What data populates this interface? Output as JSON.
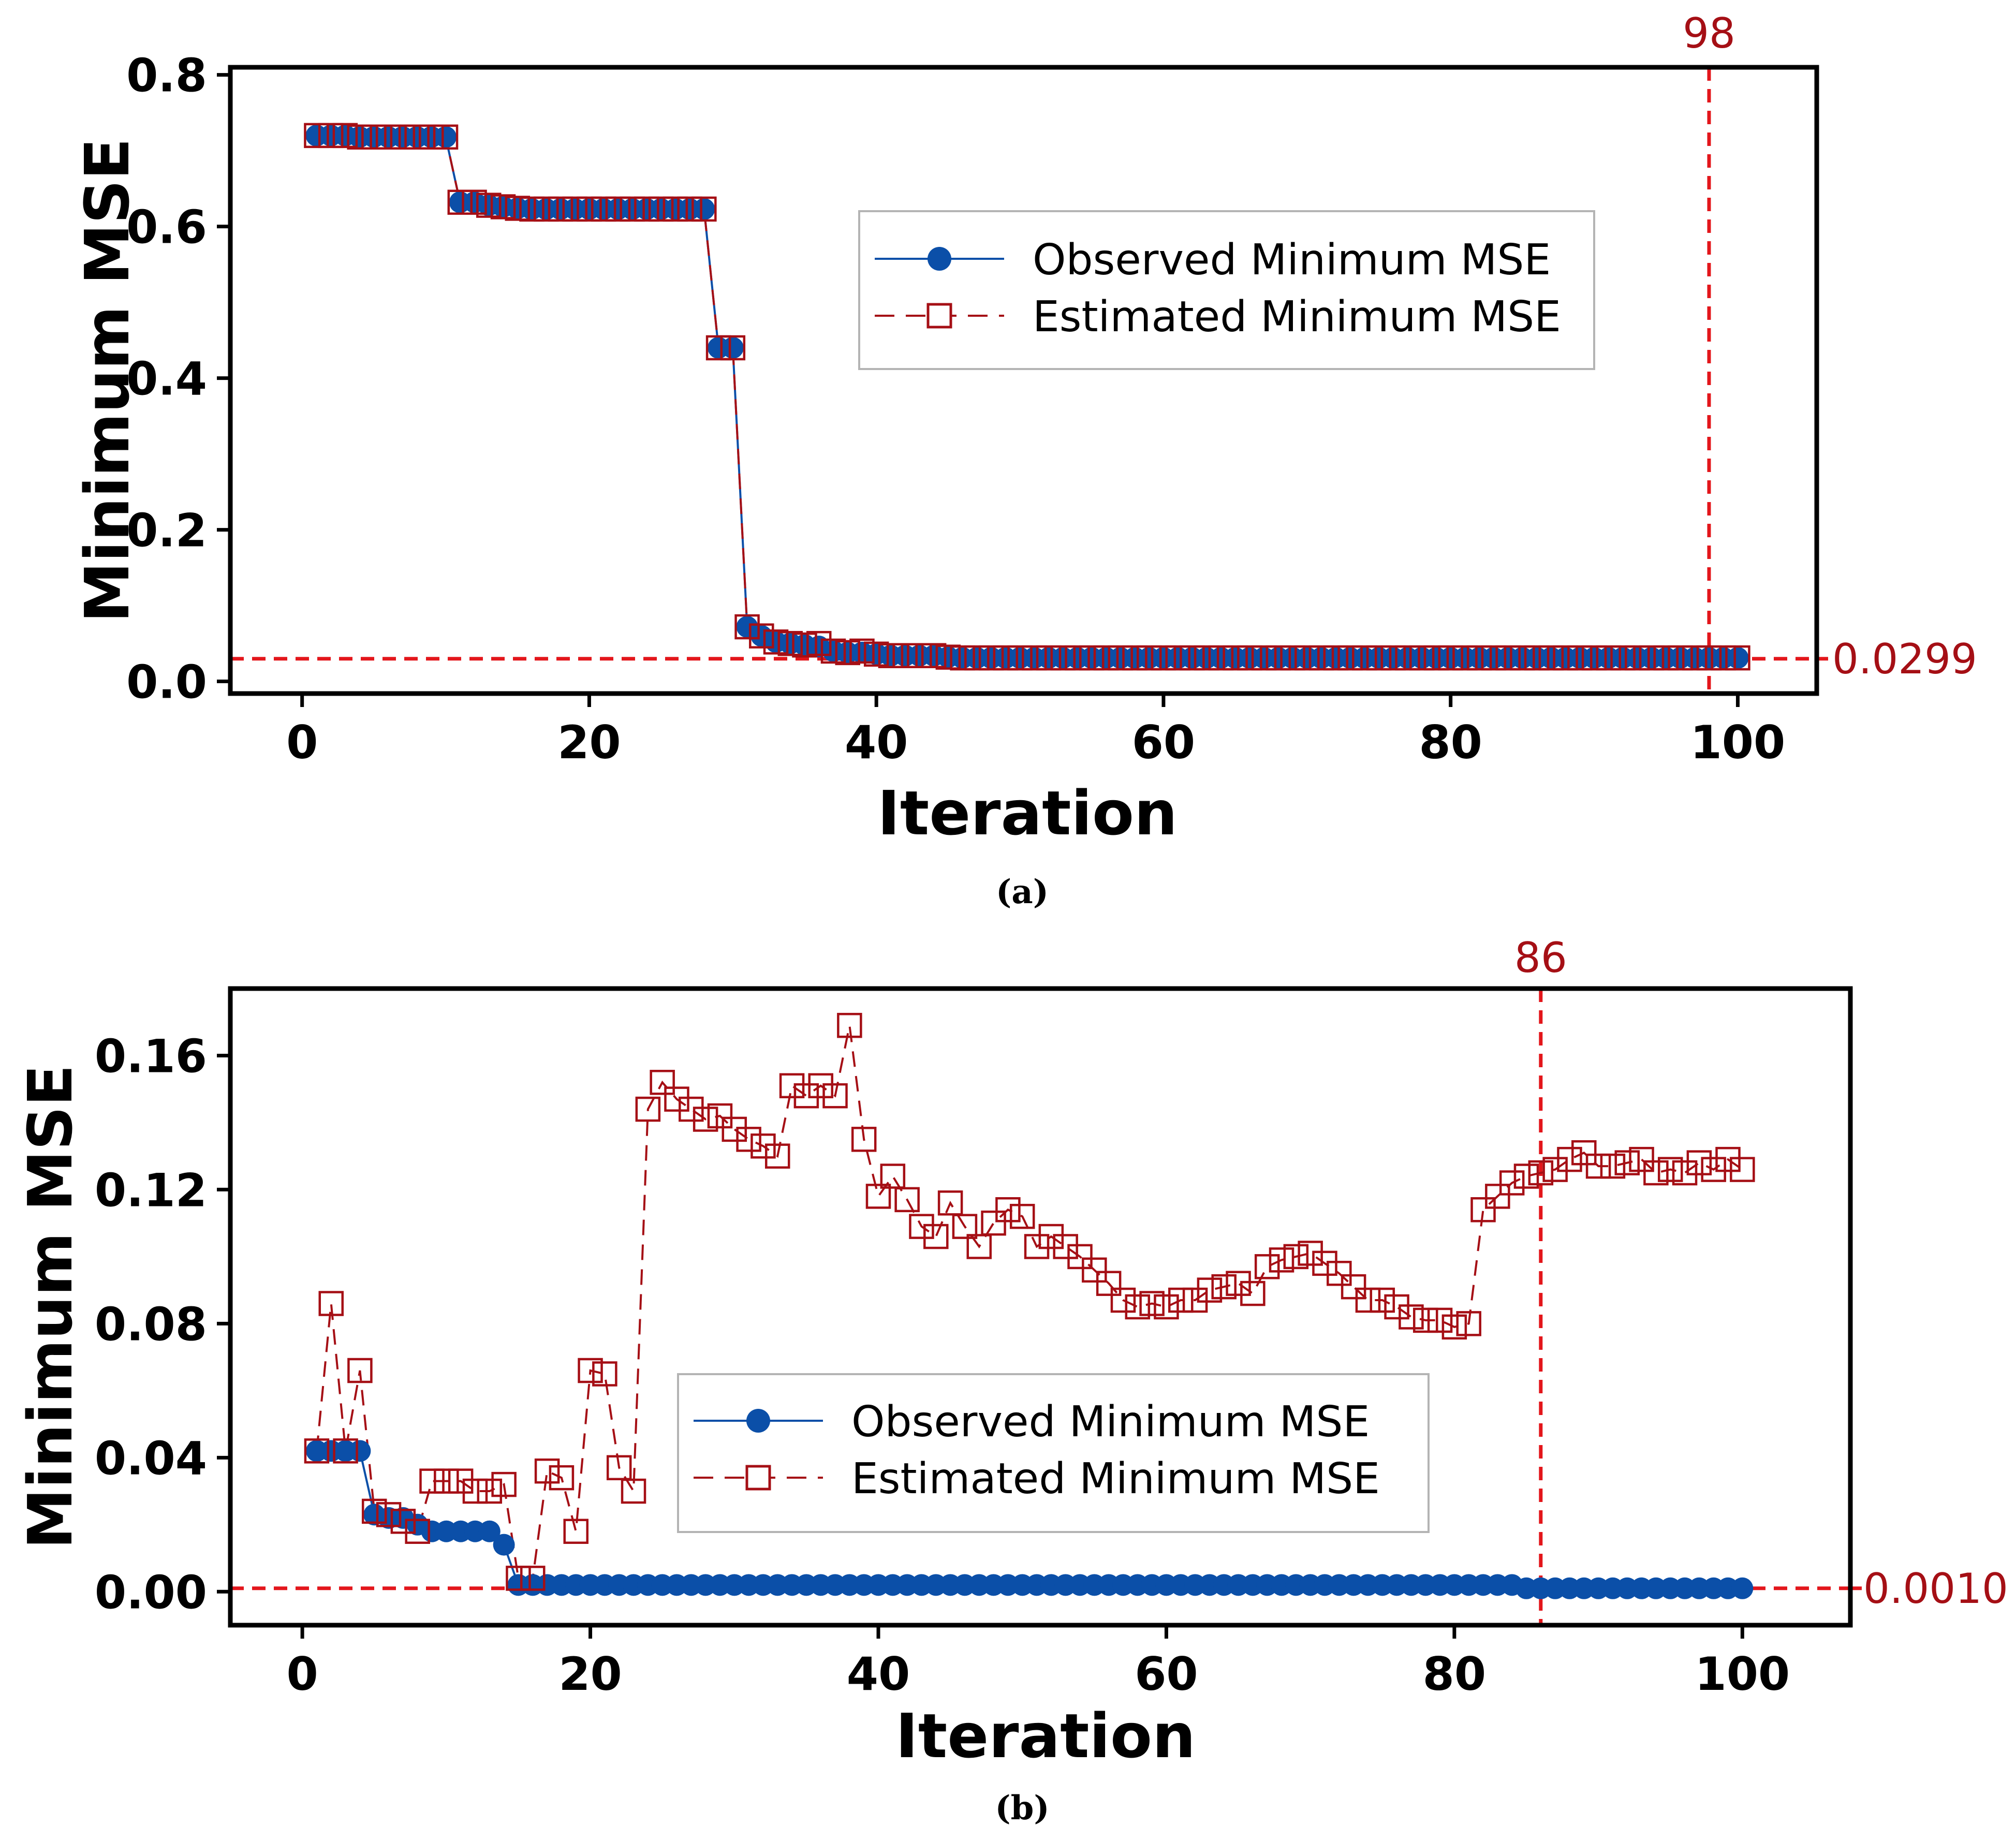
{
  "colors": {
    "observed": "#0b4fa8",
    "estimated": "#a50f15",
    "reference": "#e3161b",
    "axis": "#000000",
    "legend_border": "#b4b4b4"
  },
  "chart_data": [
    {
      "type": "line",
      "panel": "a",
      "caption": "(a)",
      "xlabel": "Iteration",
      "ylabel": "Minimum MSE",
      "xlim": [
        -5,
        105.5
      ],
      "ylim": [
        -0.016,
        0.81
      ],
      "xticks": [
        0,
        20,
        40,
        60,
        80,
        100
      ],
      "yticks": [
        0.0,
        0.2,
        0.4,
        0.6,
        0.8
      ],
      "ytick_decimals": 1,
      "grid": false,
      "legend_position": "upper-center-right",
      "legend": [
        "Observed Minimum MSE",
        "Estimated Minimum MSE"
      ],
      "vline": {
        "x": 98,
        "label": "98"
      },
      "hline": {
        "y": 0.0299,
        "label": "0.0299"
      },
      "series": [
        {
          "name": "Observed Minimum MSE",
          "marker": "filled-circle",
          "x": [
            1,
            2,
            3,
            4,
            5,
            6,
            7,
            8,
            9,
            10,
            11,
            12,
            13,
            14,
            15,
            16,
            17,
            18,
            19,
            20,
            21,
            22,
            23,
            24,
            25,
            26,
            27,
            28,
            29,
            30,
            31,
            32,
            33,
            34,
            35,
            36,
            37,
            38,
            39,
            40,
            41,
            42,
            43,
            44,
            45,
            46,
            47,
            48,
            49,
            50,
            51,
            52,
            53,
            54,
            55,
            56,
            57,
            58,
            59,
            60,
            61,
            62,
            63,
            64,
            65,
            66,
            67,
            68,
            69,
            70,
            71,
            72,
            73,
            74,
            75,
            76,
            77,
            78,
            79,
            80,
            81,
            82,
            83,
            84,
            85,
            86,
            87,
            88,
            89,
            90,
            91,
            92,
            93,
            94,
            95,
            96,
            97,
            98,
            99,
            100
          ],
          "values": [
            0.72,
            0.72,
            0.72,
            0.718,
            0.718,
            0.718,
            0.718,
            0.718,
            0.718,
            0.718,
            0.632,
            0.632,
            0.628,
            0.626,
            0.624,
            0.623,
            0.623,
            0.623,
            0.623,
            0.623,
            0.623,
            0.623,
            0.623,
            0.623,
            0.623,
            0.623,
            0.623,
            0.623,
            0.44,
            0.44,
            0.072,
            0.06,
            0.052,
            0.05,
            0.048,
            0.046,
            0.04,
            0.038,
            0.038,
            0.036,
            0.034,
            0.034,
            0.034,
            0.034,
            0.032,
            0.031,
            0.031,
            0.031,
            0.031,
            0.031,
            0.031,
            0.031,
            0.031,
            0.031,
            0.031,
            0.031,
            0.031,
            0.031,
            0.031,
            0.031,
            0.031,
            0.031,
            0.031,
            0.031,
            0.031,
            0.031,
            0.031,
            0.031,
            0.031,
            0.031,
            0.031,
            0.031,
            0.031,
            0.031,
            0.031,
            0.031,
            0.031,
            0.031,
            0.031,
            0.031,
            0.031,
            0.031,
            0.031,
            0.031,
            0.031,
            0.031,
            0.031,
            0.031,
            0.031,
            0.031,
            0.031,
            0.031,
            0.031,
            0.031,
            0.031,
            0.031,
            0.031,
            0.031,
            0.031,
            0.031
          ]
        },
        {
          "name": "Estimated Minimum MSE",
          "marker": "open-square",
          "x": [
            1,
            2,
            3,
            4,
            5,
            6,
            7,
            8,
            9,
            10,
            11,
            12,
            13,
            14,
            15,
            16,
            17,
            18,
            19,
            20,
            21,
            22,
            23,
            24,
            25,
            26,
            27,
            28,
            29,
            30,
            31,
            32,
            33,
            34,
            35,
            36,
            37,
            38,
            39,
            40,
            41,
            42,
            43,
            44,
            45,
            46,
            47,
            48,
            49,
            50,
            51,
            52,
            53,
            54,
            55,
            56,
            57,
            58,
            59,
            60,
            61,
            62,
            63,
            64,
            65,
            66,
            67,
            68,
            69,
            70,
            71,
            72,
            73,
            74,
            75,
            76,
            77,
            78,
            79,
            80,
            81,
            82,
            83,
            84,
            85,
            86,
            87,
            88,
            89,
            90,
            91,
            92,
            93,
            94,
            95,
            96,
            97,
            98,
            99,
            100
          ],
          "values": [
            0.72,
            0.72,
            0.72,
            0.718,
            0.718,
            0.718,
            0.718,
            0.718,
            0.718,
            0.718,
            0.632,
            0.632,
            0.628,
            0.626,
            0.624,
            0.623,
            0.623,
            0.623,
            0.623,
            0.623,
            0.623,
            0.623,
            0.623,
            0.623,
            0.623,
            0.623,
            0.623,
            0.623,
            0.44,
            0.44,
            0.072,
            0.06,
            0.052,
            0.05,
            0.048,
            0.05,
            0.04,
            0.038,
            0.04,
            0.036,
            0.034,
            0.034,
            0.034,
            0.034,
            0.032,
            0.031,
            0.031,
            0.031,
            0.031,
            0.031,
            0.031,
            0.031,
            0.031,
            0.031,
            0.031,
            0.031,
            0.031,
            0.031,
            0.031,
            0.031,
            0.031,
            0.031,
            0.031,
            0.031,
            0.031,
            0.031,
            0.031,
            0.031,
            0.031,
            0.031,
            0.031,
            0.031,
            0.031,
            0.031,
            0.031,
            0.031,
            0.031,
            0.031,
            0.031,
            0.031,
            0.031,
            0.031,
            0.031,
            0.031,
            0.031,
            0.031,
            0.031,
            0.031,
            0.031,
            0.031,
            0.031,
            0.031,
            0.031,
            0.031,
            0.031,
            0.031,
            0.031,
            0.031,
            0.031,
            0.031
          ]
        }
      ]
    },
    {
      "type": "line",
      "panel": "b",
      "caption": "(b)",
      "xlabel": "Iteration",
      "ylabel": "Minimum MSE",
      "xlim": [
        -5,
        107.5
      ],
      "ylim": [
        -0.01,
        0.18
      ],
      "xticks": [
        0,
        20,
        40,
        60,
        80,
        100
      ],
      "yticks": [
        0.0,
        0.04,
        0.08,
        0.12,
        0.16
      ],
      "ytick_decimals": 2,
      "grid": false,
      "legend_position": "lower-center",
      "legend": [
        "Observed Minimum MSE",
        "Estimated Minimum MSE"
      ],
      "vline": {
        "x": 86,
        "label": "86"
      },
      "hline": {
        "y": 0.001,
        "label": "0.0010"
      },
      "series": [
        {
          "name": "Observed Minimum MSE",
          "marker": "filled-circle",
          "x": [
            1,
            2,
            3,
            4,
            5,
            6,
            7,
            8,
            9,
            10,
            11,
            12,
            13,
            14,
            15,
            16,
            17,
            18,
            19,
            20,
            21,
            22,
            23,
            24,
            25,
            26,
            27,
            28,
            29,
            30,
            31,
            32,
            33,
            34,
            35,
            36,
            37,
            38,
            39,
            40,
            41,
            42,
            43,
            44,
            45,
            46,
            47,
            48,
            49,
            50,
            51,
            52,
            53,
            54,
            55,
            56,
            57,
            58,
            59,
            60,
            61,
            62,
            63,
            64,
            65,
            66,
            67,
            68,
            69,
            70,
            71,
            72,
            73,
            74,
            75,
            76,
            77,
            78,
            79,
            80,
            81,
            82,
            83,
            84,
            85,
            86,
            87,
            88,
            89,
            90,
            91,
            92,
            93,
            94,
            95,
            96,
            97,
            98,
            99,
            100
          ],
          "values": [
            0.042,
            0.042,
            0.042,
            0.042,
            0.023,
            0.022,
            0.022,
            0.02,
            0.018,
            0.018,
            0.018,
            0.018,
            0.018,
            0.014,
            0.002,
            0.002,
            0.002,
            0.002,
            0.002,
            0.002,
            0.002,
            0.002,
            0.002,
            0.002,
            0.002,
            0.002,
            0.002,
            0.002,
            0.002,
            0.002,
            0.002,
            0.002,
            0.002,
            0.002,
            0.002,
            0.002,
            0.002,
            0.002,
            0.002,
            0.002,
            0.002,
            0.002,
            0.002,
            0.002,
            0.002,
            0.002,
            0.002,
            0.002,
            0.002,
            0.002,
            0.002,
            0.002,
            0.002,
            0.002,
            0.002,
            0.002,
            0.002,
            0.002,
            0.002,
            0.002,
            0.002,
            0.002,
            0.002,
            0.002,
            0.002,
            0.002,
            0.002,
            0.002,
            0.002,
            0.002,
            0.002,
            0.002,
            0.002,
            0.002,
            0.002,
            0.002,
            0.002,
            0.002,
            0.002,
            0.002,
            0.002,
            0.002,
            0.002,
            0.002,
            0.001,
            0.001,
            0.001,
            0.001,
            0.001,
            0.001,
            0.001,
            0.001,
            0.001,
            0.001,
            0.001,
            0.001,
            0.001,
            0.001,
            0.001,
            0.001
          ]
        },
        {
          "name": "Estimated Minimum MSE",
          "marker": "open-square",
          "x": [
            1,
            2,
            3,
            4,
            5,
            6,
            7,
            8,
            9,
            10,
            11,
            12,
            13,
            14,
            15,
            16,
            17,
            18,
            19,
            20,
            21,
            22,
            23,
            24,
            25,
            26,
            27,
            28,
            29,
            30,
            31,
            32,
            33,
            34,
            35,
            36,
            37,
            38,
            39,
            40,
            41,
            42,
            43,
            44,
            45,
            46,
            47,
            48,
            49,
            50,
            51,
            52,
            53,
            54,
            55,
            56,
            57,
            58,
            59,
            60,
            61,
            62,
            63,
            64,
            65,
            66,
            67,
            68,
            69,
            70,
            71,
            72,
            73,
            74,
            75,
            76,
            77,
            78,
            79,
            80,
            81,
            82,
            83,
            84,
            85,
            86,
            87,
            88,
            89,
            90,
            91,
            92,
            93,
            94,
            95,
            96,
            97,
            98,
            99,
            100
          ],
          "values": [
            0.042,
            0.086,
            0.042,
            0.066,
            0.024,
            0.023,
            0.021,
            0.018,
            0.033,
            0.033,
            0.033,
            0.03,
            0.03,
            0.032,
            0.004,
            0.004,
            0.036,
            0.034,
            0.018,
            0.066,
            0.065,
            0.037,
            0.03,
            0.144,
            0.152,
            0.147,
            0.144,
            0.141,
            0.142,
            0.138,
            0.135,
            0.133,
            0.13,
            0.151,
            0.148,
            0.151,
            0.148,
            0.169,
            0.135,
            0.118,
            0.124,
            0.117,
            0.109,
            0.106,
            0.116,
            0.109,
            0.103,
            0.11,
            0.114,
            0.112,
            0.103,
            0.106,
            0.103,
            0.1,
            0.096,
            0.092,
            0.087,
            0.085,
            0.086,
            0.085,
            0.087,
            0.087,
            0.09,
            0.091,
            0.092,
            0.089,
            0.097,
            0.099,
            0.1,
            0.101,
            0.098,
            0.095,
            0.091,
            0.087,
            0.087,
            0.085,
            0.082,
            0.081,
            0.081,
            0.079,
            0.08,
            0.114,
            0.118,
            0.122,
            0.124,
            0.125,
            0.126,
            0.129,
            0.131,
            0.127,
            0.127,
            0.128,
            0.129,
            0.125,
            0.126,
            0.125,
            0.128,
            0.126,
            0.129,
            0.126
          ]
        }
      ]
    }
  ]
}
